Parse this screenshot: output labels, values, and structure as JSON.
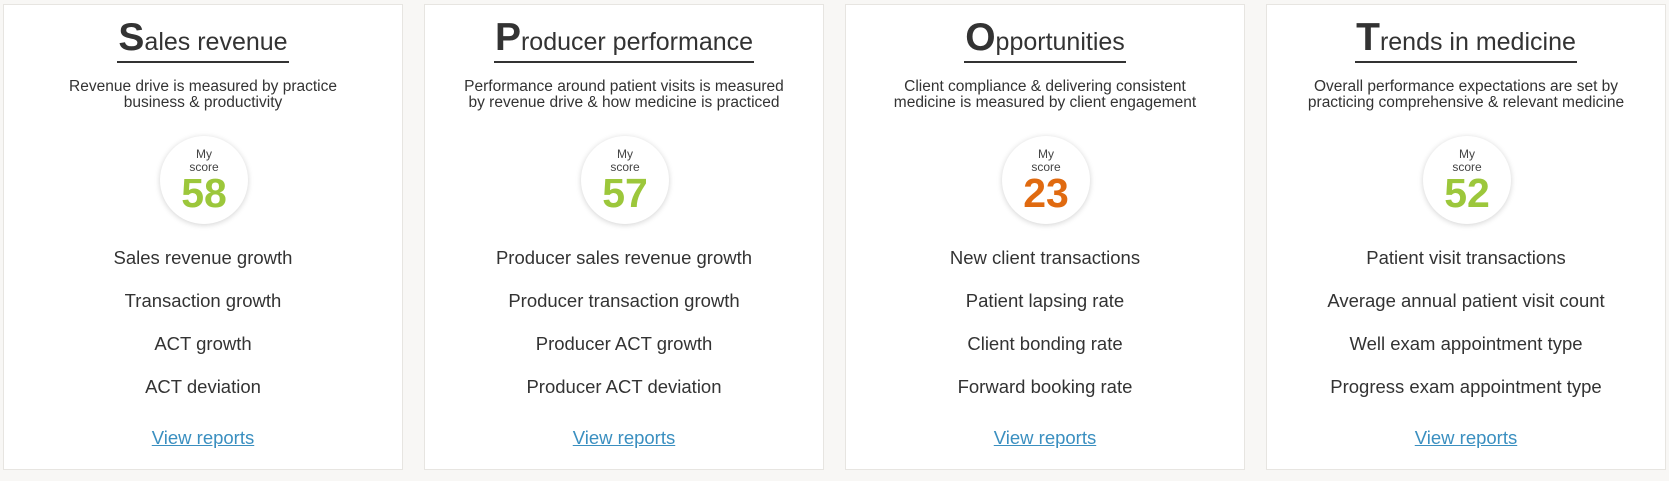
{
  "colors": {
    "score_good": "#9cc73b",
    "score_bad": "#e06a10",
    "link": "#3a8fc0"
  },
  "cards": [
    {
      "title_initial": "S",
      "title_rest": "ales revenue",
      "description_line1": "Revenue drive is measured by practice",
      "description_line2": "business & productivity",
      "score_label_line1": "My",
      "score_label_line2": "score",
      "score": "58",
      "score_color": "#9cc73b",
      "metrics": [
        "Sales revenue growth",
        "Transaction growth",
        "ACT growth",
        "ACT deviation"
      ],
      "link": "View reports"
    },
    {
      "title_initial": "P",
      "title_rest": "roducer performance",
      "description_line1": "Performance around patient visits is measured",
      "description_line2": "by revenue drive & how medicine is practiced",
      "score_label_line1": "My",
      "score_label_line2": "score",
      "score": "57",
      "score_color": "#9cc73b",
      "metrics": [
        "Producer sales revenue growth",
        "Producer transaction growth",
        "Producer ACT growth",
        "Producer ACT deviation"
      ],
      "link": "View reports"
    },
    {
      "title_initial": "O",
      "title_rest": "pportunities",
      "description_line1": "Client compliance & delivering consistent",
      "description_line2": "medicine is measured by client engagement",
      "score_label_line1": "My",
      "score_label_line2": "score",
      "score": "23",
      "score_color": "#e06a10",
      "metrics": [
        "New client transactions",
        "Patient lapsing rate",
        "Client bonding rate",
        "Forward booking rate"
      ],
      "link": "View reports"
    },
    {
      "title_initial": "T",
      "title_rest": "rends in medicine",
      "description_line1": "Overall performance expectations are set by",
      "description_line2": "practicing comprehensive & relevant medicine",
      "score_label_line1": "My",
      "score_label_line2": "score",
      "score": "52",
      "score_color": "#9cc73b",
      "metrics": [
        "Patient visit transactions",
        "Average annual patient visit count",
        "Well exam appointment type",
        "Progress exam appointment type"
      ],
      "link": "View reports"
    }
  ]
}
